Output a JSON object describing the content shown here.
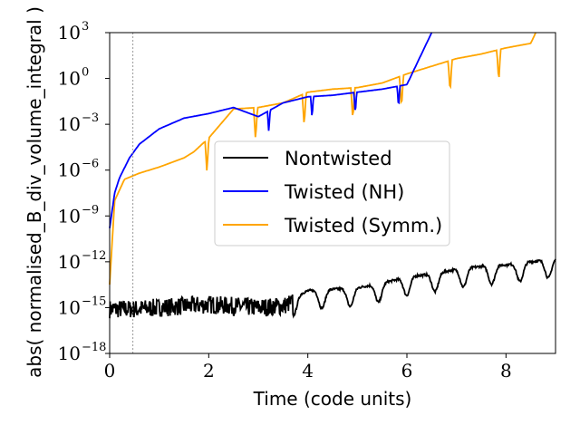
{
  "chart_data": {
    "type": "line",
    "title": "",
    "xlabel": "Time (code units)",
    "ylabel": "abs( normalised_B_div_volume_integral )",
    "xlim": [
      0,
      9
    ],
    "ylim_log10": [
      -18,
      3
    ],
    "y_scale": "log",
    "x_ticks": [
      0,
      2,
      4,
      6,
      8
    ],
    "x_tick_labels": [
      "0",
      "2",
      "4",
      "6",
      "8"
    ],
    "y_ticks_log10": [
      -18,
      -15,
      -12,
      -9,
      -6,
      -3,
      0,
      3
    ],
    "y_tick_labels": [
      "10",
      "10",
      "10",
      "10",
      "10",
      "10",
      "10",
      "10"
    ],
    "y_tick_exponents": [
      "−18",
      "−15",
      "−12",
      "−9",
      "−6",
      "−3",
      "0",
      "3"
    ],
    "vline_x": 0.47,
    "legend_position": "center-right",
    "colors": {
      "nontwisted": "#000000",
      "twisted_nh": "#0000ff",
      "twisted_symm": "#ffa500"
    },
    "series": [
      {
        "name": "Nontwisted",
        "color": "#000000",
        "x": [
          0.0,
          0.5,
          1.0,
          1.5,
          2.0,
          2.5,
          3.0,
          3.5,
          4.0,
          4.5,
          5.0,
          5.5,
          6.0,
          6.5,
          7.0,
          7.5,
          8.0,
          8.5,
          9.0
        ],
        "log10_y": [
          -14.8,
          -14.8,
          -14.7,
          -14.6,
          -14.5,
          -14.6,
          -14.7,
          -14.6,
          -13.9,
          -13.8,
          -13.7,
          -13.4,
          -13.0,
          -12.8,
          -12.5,
          -12.3,
          -12.2,
          -12.0,
          -11.8
        ]
      },
      {
        "name": "Twisted (NH)",
        "color": "#0000ff",
        "x": [
          0.0,
          0.1,
          0.2,
          0.4,
          0.6,
          0.8,
          1.0,
          1.5,
          2.0,
          2.5,
          3.0,
          3.5,
          4.0,
          4.5,
          5.0,
          5.5,
          6.0,
          6.5
        ],
        "log10_y": [
          -9.8,
          -7.5,
          -6.5,
          -5.2,
          -4.3,
          -3.8,
          -3.3,
          -2.6,
          -2.3,
          -1.9,
          -2.5,
          -1.6,
          -1.2,
          -1.1,
          -0.9,
          -0.7,
          -0.4,
          3.0
        ]
      },
      {
        "name": "Twisted (Symm.)",
        "color": "#ffa500",
        "x": [
          0.0,
          0.1,
          0.3,
          0.6,
          1.0,
          1.5,
          1.7,
          2.0,
          2.5,
          3.0,
          3.5,
          4.0,
          4.5,
          5.0,
          5.5,
          6.0,
          6.5,
          7.0,
          7.5,
          8.0,
          8.5,
          8.6
        ],
        "log10_y": [
          -13.5,
          -8.0,
          -6.6,
          -6.2,
          -5.8,
          -5.2,
          -4.8,
          -3.9,
          -2.0,
          -1.9,
          -1.6,
          -0.9,
          -0.7,
          -0.6,
          -0.3,
          0.3,
          0.8,
          1.3,
          1.6,
          2.0,
          2.3,
          3.0
        ]
      }
    ]
  }
}
